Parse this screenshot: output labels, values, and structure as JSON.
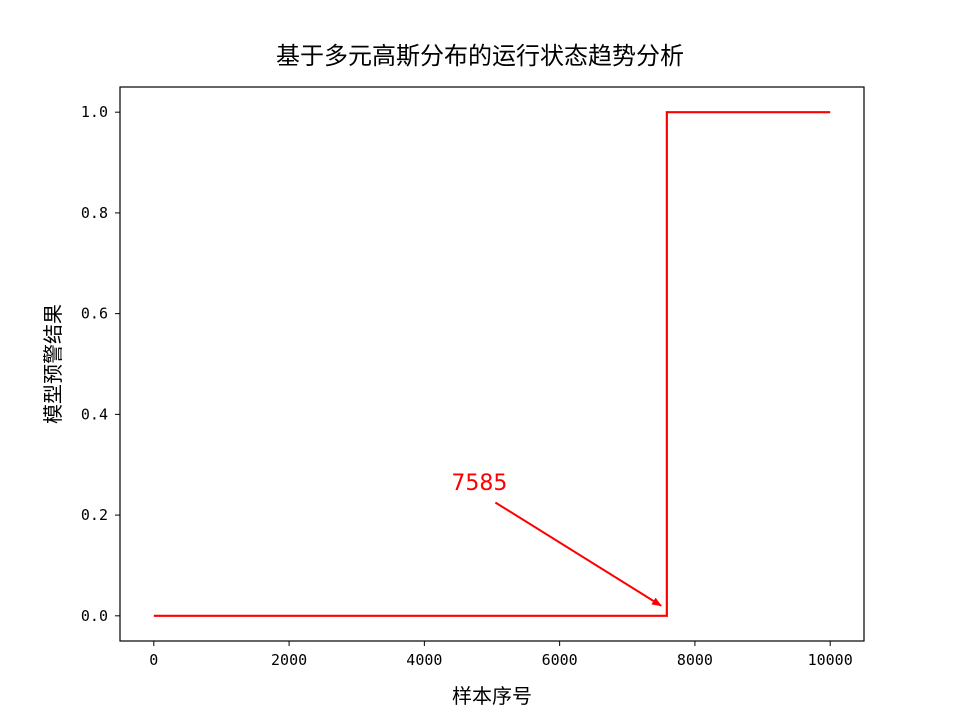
{
  "chart_data": {
    "type": "line",
    "title": "基于多元高斯分布的运行状态趋势分析",
    "xlabel": "样本序号",
    "ylabel": "模型预警结果",
    "xlim": [
      -500,
      10500
    ],
    "ylim": [
      -0.05,
      1.05
    ],
    "xticks": [
      0,
      2000,
      4000,
      6000,
      8000,
      10000
    ],
    "xtick_labels": [
      "0",
      "2000",
      "4000",
      "6000",
      "8000",
      "10000"
    ],
    "yticks": [
      0.0,
      0.2,
      0.4,
      0.6,
      0.8,
      1.0
    ],
    "ytick_labels": [
      "0.0",
      "0.2",
      "0.4",
      "0.6",
      "0.8",
      "1.0"
    ],
    "grid": false,
    "series": [
      {
        "color": "#ff0000",
        "x": [
          0,
          7585,
          7585,
          10000
        ],
        "y": [
          0,
          0,
          1,
          1
        ]
      }
    ],
    "annotations": [
      {
        "text": "7585",
        "color": "#ff0000",
        "text_xy": [
          4400,
          0.25
        ],
        "arrow_tail": [
          5050,
          0.225
        ],
        "arrow_head": [
          7500,
          0.02
        ]
      }
    ]
  }
}
